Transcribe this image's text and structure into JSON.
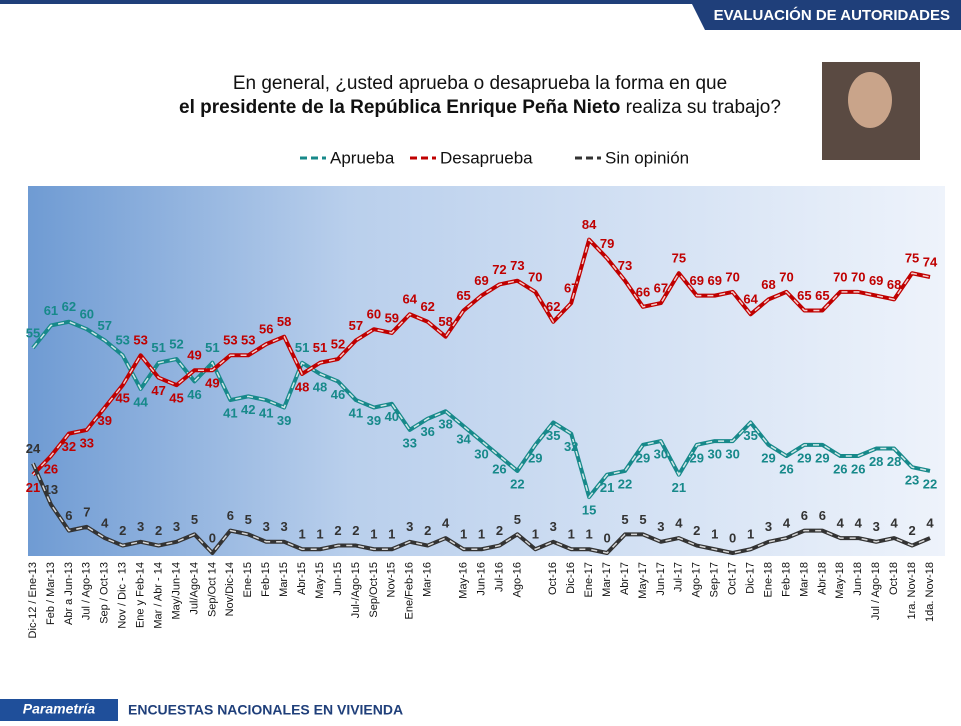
{
  "header": {
    "section": "EVALUACIÓN DE AUTORIDADES"
  },
  "footer": {
    "brand": "Parametría",
    "note": "ENCUESTAS NACIONALES  EN VIVIENDA"
  },
  "chart_data": {
    "type": "line",
    "title": {
      "line1": "En general, ¿usted aprueba o desaprueba la forma en que",
      "line2_bold": "el presidente de la República Enrique Peña Nieto",
      "line2_rest": "realiza su trabajo?"
    },
    "categories": [
      "Dic-12 / Ene-13",
      "Feb / Mar-13",
      "Abr a Jun-13",
      "Jul / Ago-13",
      "Sep / Oct-13",
      "Nov / Dic - 13",
      "Ene y Feb-14",
      "Mar / Abr - 14",
      "May/Jun-14",
      "Jul/Ago-14",
      "Sep/Oct 14",
      "Nov/Dic-14",
      "Ene-15",
      "Feb-15",
      "Mar-15",
      "Abr-15",
      "May-15",
      "Jun-15",
      "Jul-/Ago-15",
      "Sep/Oct-15",
      "Nov-15",
      "Ene/Feb-16",
      "Mar-16",
      null,
      "May-16",
      "Jun-16",
      "Jul-16",
      "Ago-16",
      null,
      "Oct-16",
      "Dic-16",
      "Ene-17",
      "Mar-17",
      "Abr-17",
      "May-17",
      "Jun-17",
      "Jul-17",
      "Ago-17",
      "Sep-17",
      "Oct-17",
      "Dic-17",
      "Ene-18",
      "Feb-18",
      "Mar-18",
      "Abr-18",
      "May-18",
      "Jun-18",
      "Jul / Ago-18",
      "Oct-18",
      "1ra. Nov-18",
      "1da. Nov-18"
    ],
    "series": [
      {
        "name": "Aprueba",
        "color": "#17898a",
        "values": [
          55,
          61,
          62,
          60,
          57,
          53,
          44,
          51,
          52,
          46,
          51,
          41,
          42,
          41,
          39,
          51,
          48,
          46,
          41,
          39,
          40,
          33,
          36,
          38,
          34,
          30,
          26,
          22,
          29,
          35,
          32,
          15,
          21,
          22,
          29,
          30,
          21,
          29,
          30,
          30,
          35,
          29,
          26,
          29,
          29,
          26,
          26,
          28,
          28,
          23,
          22
        ]
      },
      {
        "name": "Desaprueba",
        "color": "#c00000",
        "values": [
          21,
          26,
          32,
          33,
          39,
          45,
          53,
          47,
          45,
          49,
          49,
          53,
          53,
          56,
          58,
          48,
          51,
          52,
          57,
          60,
          59,
          64,
          62,
          58,
          65,
          69,
          72,
          73,
          70,
          62,
          67,
          84,
          79,
          73,
          66,
          67,
          75,
          69,
          69,
          70,
          64,
          68,
          70,
          65,
          65,
          70,
          70,
          69,
          68,
          75,
          74
        ]
      },
      {
        "name": "Sin opinión",
        "color": "#333333",
        "values": [
          24,
          13,
          6,
          7,
          4,
          2,
          3,
          2,
          3,
          5,
          0,
          6,
          5,
          3,
          3,
          1,
          1,
          2,
          2,
          1,
          1,
          3,
          2,
          4,
          1,
          1,
          2,
          5,
          1,
          3,
          1,
          1,
          0,
          5,
          5,
          3,
          4,
          2,
          1,
          0,
          1,
          3,
          4,
          6,
          6,
          4,
          4,
          3,
          4,
          2,
          4
        ]
      }
    ],
    "ylim": [
      0,
      100
    ]
  }
}
